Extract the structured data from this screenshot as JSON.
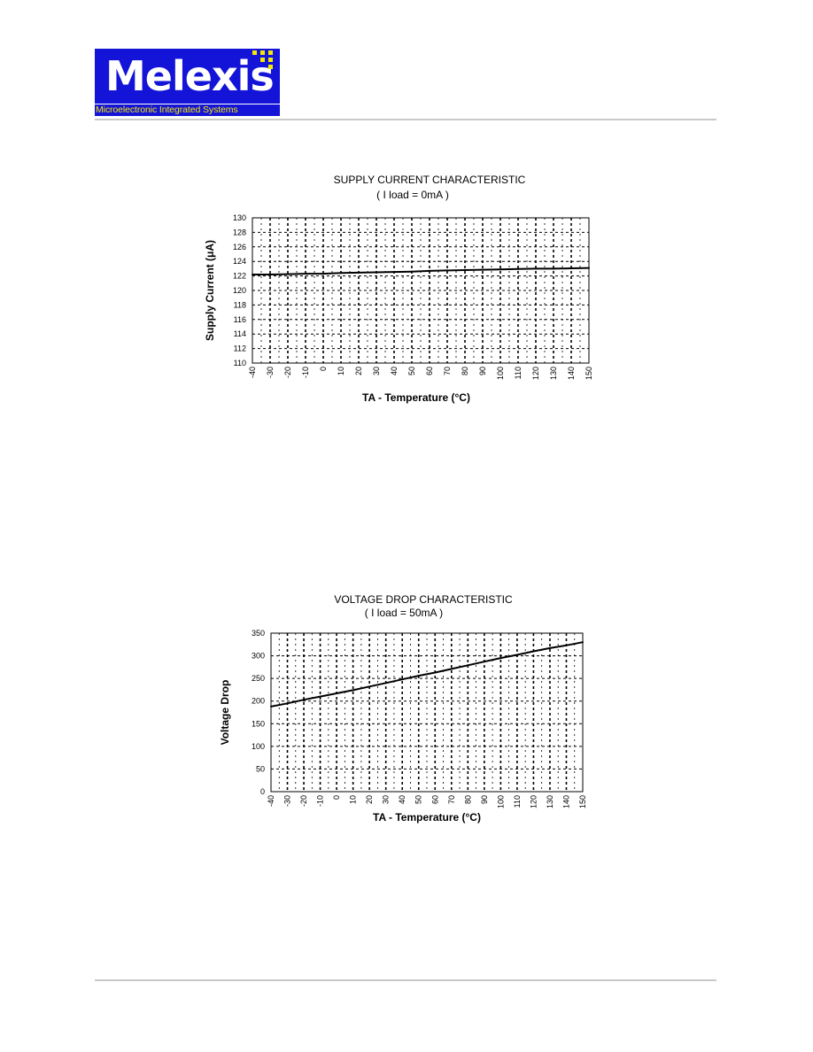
{
  "logo": {
    "wordmark": "Melexis",
    "tagline": "Microelectronic Integrated Systems",
    "colors": {
      "box": "#1414d8",
      "dots": "#f5e800",
      "text": "#ffffff"
    }
  },
  "chart_data": [
    {
      "type": "line",
      "title": "SUPPLY CURRENT CHARACTERISTIC",
      "subtitle": "( I load = 0mA )",
      "xlabel": "TA - Temperature (°C)",
      "ylabel": "Supply Current  (μA)",
      "x": [
        -40,
        -30,
        -20,
        -10,
        0,
        10,
        20,
        30,
        40,
        50,
        60,
        70,
        80,
        90,
        100,
        110,
        120,
        130,
        140,
        150
      ],
      "x_ticks": [
        "-40",
        "-30",
        "-20",
        "-10",
        "0",
        "10",
        "20",
        "30",
        "40",
        "50",
        "60",
        "70",
        "80",
        "90",
        "100",
        "110",
        "120",
        "130",
        "140",
        "150"
      ],
      "y_ticks": [
        "110",
        "112",
        "114",
        "116",
        "118",
        "120",
        "122",
        "124",
        "126",
        "128",
        "130"
      ],
      "ylim": [
        110,
        130
      ],
      "xlim": [
        -40,
        150
      ],
      "series": [
        {
          "values": [
            122.2,
            122.2,
            122.25,
            122.3,
            122.3,
            122.4,
            122.45,
            122.5,
            122.55,
            122.6,
            122.7,
            122.75,
            122.8,
            122.85,
            122.9,
            122.95,
            123.0,
            123.0,
            123.05,
            123.1
          ]
        }
      ],
      "grid": true,
      "line_color": "#000000"
    },
    {
      "type": "line",
      "title": "VOLTAGE DROP CHARACTERISTIC",
      "subtitle": "( I load = 50mA )",
      "xlabel": "TA - Temperature (°C)",
      "ylabel": "Voltage Drop",
      "x": [
        -40,
        -30,
        -20,
        -10,
        0,
        10,
        20,
        30,
        40,
        50,
        60,
        70,
        80,
        90,
        100,
        110,
        120,
        130,
        140,
        150
      ],
      "x_ticks": [
        "-40",
        "-30",
        "-20",
        "-10",
        "0",
        "10",
        "20",
        "30",
        "40",
        "50",
        "60",
        "70",
        "80",
        "90",
        "100",
        "110",
        "120",
        "130",
        "140",
        "150"
      ],
      "y_ticks": [
        "0",
        "50",
        "100",
        "150",
        "200",
        "250",
        "300",
        "350"
      ],
      "ylim": [
        0,
        350
      ],
      "xlim": [
        -40,
        150
      ],
      "series": [
        {
          "values": [
            188,
            195,
            203,
            210,
            217,
            224,
            232,
            240,
            248,
            256,
            263,
            271,
            279,
            287,
            295,
            302,
            310,
            317,
            323,
            330
          ]
        }
      ],
      "grid": true,
      "line_color": "#000000"
    }
  ]
}
